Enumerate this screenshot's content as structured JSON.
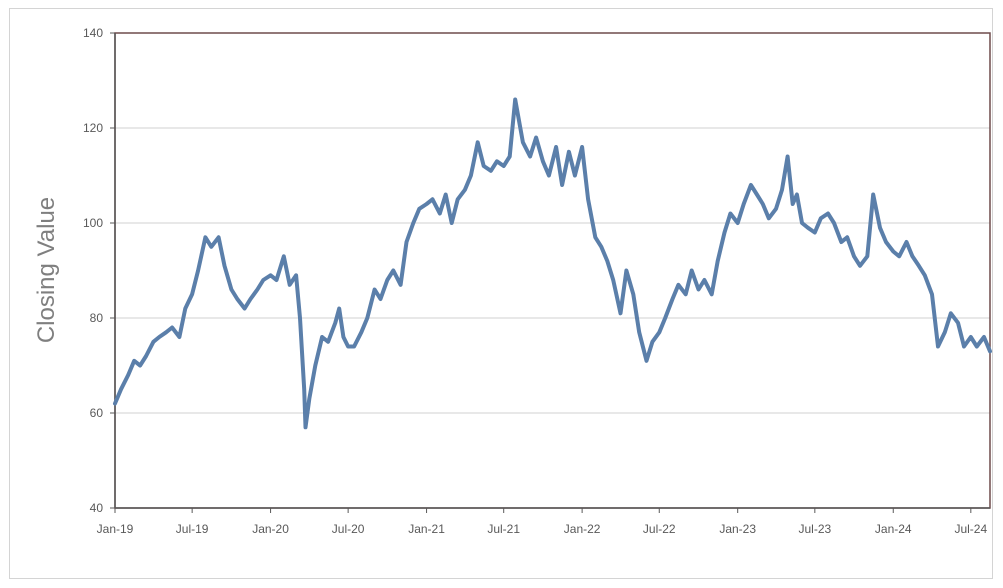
{
  "chart_data": {
    "type": "line",
    "title": "",
    "xlabel": "",
    "ylabel": "Closing Value",
    "ylim": [
      40,
      140
    ],
    "yticks": [
      40,
      60,
      80,
      100,
      120,
      140
    ],
    "xlim": [
      "2019-01-01",
      "2024-08-15"
    ],
    "xticks": [
      {
        "date": "2019-01-01",
        "label": "Jan-19"
      },
      {
        "date": "2019-07-01",
        "label": "Jul-19"
      },
      {
        "date": "2020-01-01",
        "label": "Jan-20"
      },
      {
        "date": "2020-07-01",
        "label": "Jul-20"
      },
      {
        "date": "2021-01-01",
        "label": "Jan-21"
      },
      {
        "date": "2021-07-01",
        "label": "Jul-21"
      },
      {
        "date": "2022-01-01",
        "label": "Jan-22"
      },
      {
        "date": "2022-07-01",
        "label": "Jul-22"
      },
      {
        "date": "2023-01-01",
        "label": "Jan-23"
      },
      {
        "date": "2023-07-01",
        "label": "Jul-23"
      },
      {
        "date": "2024-01-01",
        "label": "Jan-24"
      },
      {
        "date": "2024-07-01",
        "label": "Jul-24"
      }
    ],
    "grid": "horizontal",
    "line_color": "#5b7faa",
    "series": [
      {
        "points": [
          [
            "2019-01-01",
            62
          ],
          [
            "2019-01-15",
            65
          ],
          [
            "2019-02-01",
            68
          ],
          [
            "2019-02-15",
            71
          ],
          [
            "2019-03-01",
            70
          ],
          [
            "2019-03-15",
            72
          ],
          [
            "2019-04-01",
            75
          ],
          [
            "2019-04-15",
            76
          ],
          [
            "2019-05-01",
            77
          ],
          [
            "2019-05-15",
            78
          ],
          [
            "2019-06-01",
            76
          ],
          [
            "2019-06-15",
            82
          ],
          [
            "2019-07-01",
            85
          ],
          [
            "2019-07-15",
            90
          ],
          [
            "2019-08-01",
            97
          ],
          [
            "2019-08-15",
            95
          ],
          [
            "2019-09-01",
            97
          ],
          [
            "2019-09-15",
            91
          ],
          [
            "2019-10-01",
            86
          ],
          [
            "2019-10-15",
            84
          ],
          [
            "2019-11-01",
            82
          ],
          [
            "2019-11-15",
            84
          ],
          [
            "2019-12-01",
            86
          ],
          [
            "2019-12-15",
            88
          ],
          [
            "2020-01-01",
            89
          ],
          [
            "2020-01-15",
            88
          ],
          [
            "2020-02-01",
            93
          ],
          [
            "2020-02-15",
            87
          ],
          [
            "2020-03-01",
            89
          ],
          [
            "2020-03-10",
            80
          ],
          [
            "2020-03-20",
            65
          ],
          [
            "2020-03-23",
            57
          ],
          [
            "2020-04-01",
            63
          ],
          [
            "2020-04-15",
            70
          ],
          [
            "2020-05-01",
            76
          ],
          [
            "2020-05-15",
            75
          ],
          [
            "2020-06-01",
            79
          ],
          [
            "2020-06-10",
            82
          ],
          [
            "2020-06-20",
            76
          ],
          [
            "2020-07-01",
            74
          ],
          [
            "2020-07-15",
            74
          ],
          [
            "2020-08-01",
            77
          ],
          [
            "2020-08-15",
            80
          ],
          [
            "2020-09-01",
            86
          ],
          [
            "2020-09-15",
            84
          ],
          [
            "2020-10-01",
            88
          ],
          [
            "2020-10-15",
            90
          ],
          [
            "2020-11-01",
            87
          ],
          [
            "2020-11-15",
            96
          ],
          [
            "2020-12-01",
            100
          ],
          [
            "2020-12-15",
            103
          ],
          [
            "2021-01-01",
            104
          ],
          [
            "2021-01-15",
            105
          ],
          [
            "2021-02-01",
            102
          ],
          [
            "2021-02-15",
            106
          ],
          [
            "2021-03-01",
            100
          ],
          [
            "2021-03-15",
            105
          ],
          [
            "2021-04-01",
            107
          ],
          [
            "2021-04-15",
            110
          ],
          [
            "2021-05-01",
            117
          ],
          [
            "2021-05-15",
            112
          ],
          [
            "2021-06-01",
            111
          ],
          [
            "2021-06-15",
            113
          ],
          [
            "2021-07-01",
            112
          ],
          [
            "2021-07-15",
            114
          ],
          [
            "2021-07-28",
            126
          ],
          [
            "2021-08-15",
            117
          ],
          [
            "2021-09-01",
            114
          ],
          [
            "2021-09-15",
            118
          ],
          [
            "2021-10-01",
            113
          ],
          [
            "2021-10-15",
            110
          ],
          [
            "2021-11-01",
            116
          ],
          [
            "2021-11-15",
            108
          ],
          [
            "2021-12-01",
            115
          ],
          [
            "2021-12-15",
            110
          ],
          [
            "2022-01-01",
            116
          ],
          [
            "2022-01-15",
            105
          ],
          [
            "2022-02-01",
            97
          ],
          [
            "2022-02-15",
            95
          ],
          [
            "2022-03-01",
            92
          ],
          [
            "2022-03-15",
            88
          ],
          [
            "2022-04-01",
            81
          ],
          [
            "2022-04-15",
            90
          ],
          [
            "2022-05-01",
            85
          ],
          [
            "2022-05-15",
            77
          ],
          [
            "2022-06-01",
            71
          ],
          [
            "2022-06-15",
            75
          ],
          [
            "2022-07-01",
            77
          ],
          [
            "2022-07-15",
            80
          ],
          [
            "2022-08-01",
            84
          ],
          [
            "2022-08-15",
            87
          ],
          [
            "2022-09-01",
            85
          ],
          [
            "2022-09-15",
            90
          ],
          [
            "2022-10-01",
            86
          ],
          [
            "2022-10-15",
            88
          ],
          [
            "2022-11-01",
            85
          ],
          [
            "2022-11-15",
            92
          ],
          [
            "2022-12-01",
            98
          ],
          [
            "2022-12-15",
            102
          ],
          [
            "2023-01-01",
            100
          ],
          [
            "2023-01-15",
            104
          ],
          [
            "2023-02-01",
            108
          ],
          [
            "2023-02-15",
            106
          ],
          [
            "2023-03-01",
            104
          ],
          [
            "2023-03-15",
            101
          ],
          [
            "2023-04-01",
            103
          ],
          [
            "2023-04-15",
            107
          ],
          [
            "2023-04-28",
            114
          ],
          [
            "2023-05-10",
            104
          ],
          [
            "2023-05-20",
            106
          ],
          [
            "2023-06-01",
            100
          ],
          [
            "2023-06-15",
            99
          ],
          [
            "2023-07-01",
            98
          ],
          [
            "2023-07-15",
            101
          ],
          [
            "2023-08-01",
            102
          ],
          [
            "2023-08-15",
            100
          ],
          [
            "2023-09-01",
            96
          ],
          [
            "2023-09-15",
            97
          ],
          [
            "2023-10-01",
            93
          ],
          [
            "2023-10-15",
            91
          ],
          [
            "2023-11-01",
            93
          ],
          [
            "2023-11-15",
            106
          ],
          [
            "2023-12-01",
            99
          ],
          [
            "2023-12-15",
            96
          ],
          [
            "2024-01-01",
            94
          ],
          [
            "2024-01-15",
            93
          ],
          [
            "2024-02-01",
            96
          ],
          [
            "2024-02-15",
            93
          ],
          [
            "2024-03-01",
            91
          ],
          [
            "2024-03-15",
            89
          ],
          [
            "2024-04-01",
            85
          ],
          [
            "2024-04-15",
            74
          ],
          [
            "2024-05-01",
            77
          ],
          [
            "2024-05-15",
            81
          ],
          [
            "2024-06-01",
            79
          ],
          [
            "2024-06-15",
            74
          ],
          [
            "2024-07-01",
            76
          ],
          [
            "2024-07-15",
            74
          ],
          [
            "2024-08-01",
            76
          ],
          [
            "2024-08-15",
            73
          ]
        ]
      }
    ]
  }
}
